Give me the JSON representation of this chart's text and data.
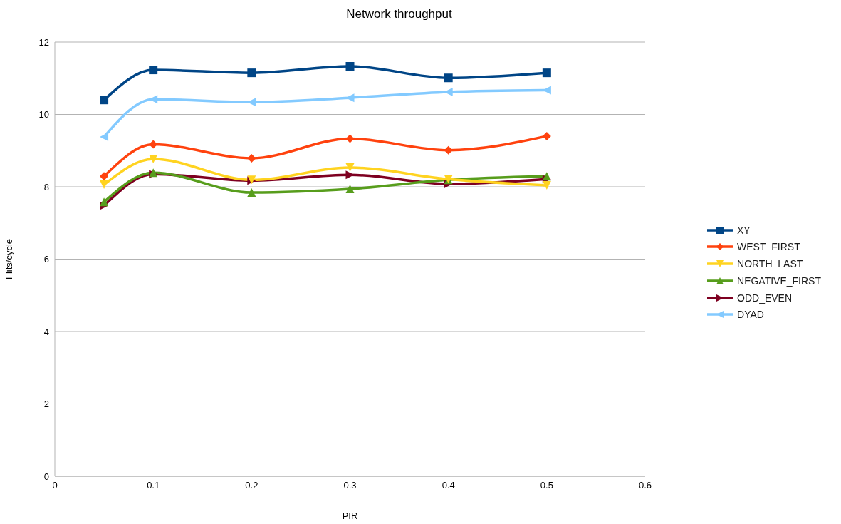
{
  "chart_data": {
    "type": "line",
    "title": "Network throughput",
    "xlabel": "PIR",
    "ylabel": "Flits/cycle",
    "x": [
      0.05,
      0.1,
      0.2,
      0.3,
      0.4,
      0.5
    ],
    "series": [
      {
        "name": "XY",
        "color": "#004586",
        "marker": "square",
        "values": [
          10.4,
          11.23,
          11.15,
          11.33,
          11.01,
          11.15
        ]
      },
      {
        "name": "WEST_FIRST",
        "color": "#ff420e",
        "marker": "diamond",
        "values": [
          8.29,
          9.17,
          8.79,
          9.33,
          9.01,
          9.4
        ]
      },
      {
        "name": "NORTH_LAST",
        "color": "#ffd320",
        "marker": "triangle-down",
        "values": [
          8.06,
          8.77,
          8.19,
          8.53,
          8.21,
          8.04
        ]
      },
      {
        "name": "NEGATIVE_FIRST",
        "color": "#579d1c",
        "marker": "triangle",
        "values": [
          7.58,
          8.39,
          7.84,
          7.94,
          8.19,
          8.29
        ]
      },
      {
        "name": "ODD_EVEN",
        "color": "#7e0021",
        "marker": "triangle-right",
        "values": [
          7.48,
          8.35,
          8.17,
          8.33,
          8.08,
          8.21
        ]
      },
      {
        "name": "DYAD",
        "color": "#83caff",
        "marker": "triangle-left",
        "values": [
          9.38,
          10.42,
          10.34,
          10.46,
          10.62,
          10.67
        ]
      }
    ],
    "xlim": [
      0,
      0.6
    ],
    "xticks": [
      0,
      0.1,
      0.2,
      0.3,
      0.4,
      0.5,
      0.6
    ],
    "ylim": [
      0,
      12
    ],
    "yticks": [
      0,
      2,
      4,
      6,
      8,
      10,
      12
    ],
    "grid": "y",
    "legend": "right",
    "line_style": "solid"
  }
}
